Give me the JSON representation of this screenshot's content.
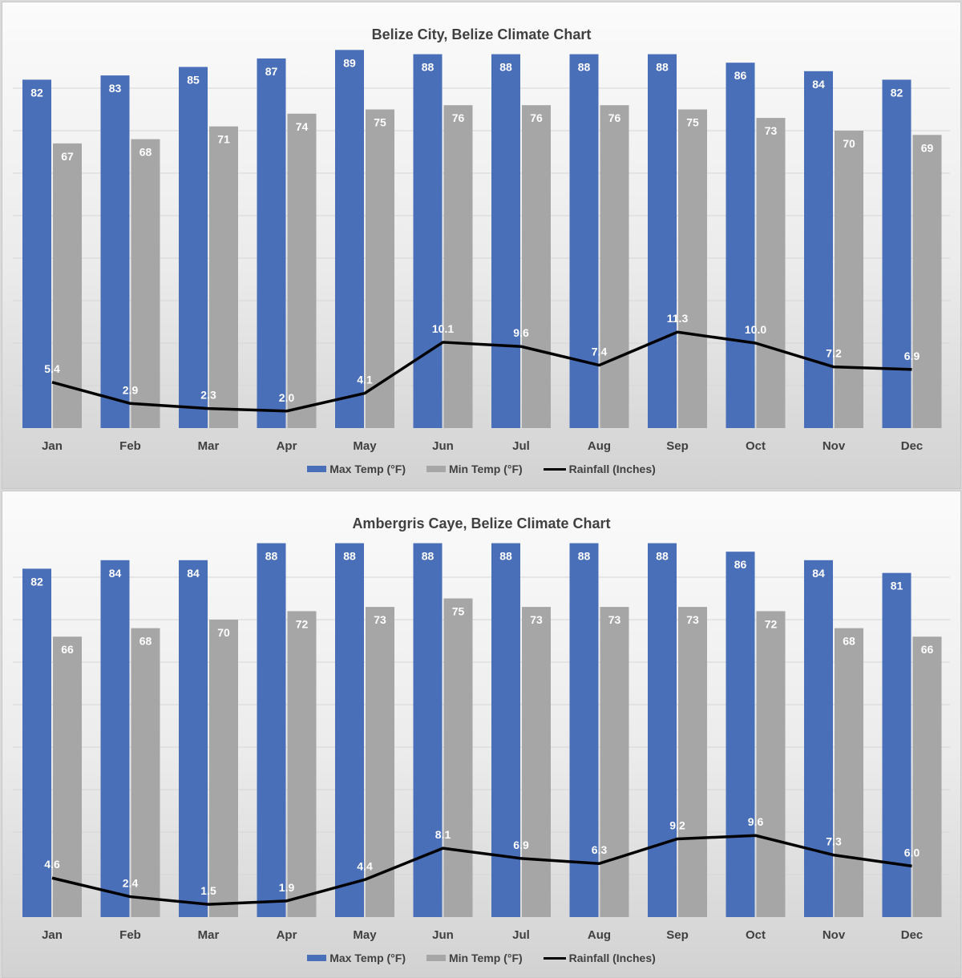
{
  "chart_data": [
    {
      "type": "bar",
      "title": "Belize City, Belize Climate Chart",
      "categories": [
        "Jan",
        "Feb",
        "Mar",
        "Apr",
        "May",
        "Jun",
        "Jul",
        "Aug",
        "Sep",
        "Oct",
        "Nov",
        "Dec"
      ],
      "series": [
        {
          "name": "Max Temp (°F)",
          "type": "bar",
          "color": "#4a6fb9",
          "values": [
            82,
            83,
            85,
            87,
            89,
            88,
            88,
            88,
            88,
            86,
            84,
            82
          ]
        },
        {
          "name": "Min Temp (°F)",
          "type": "bar",
          "color": "#a6a6a6",
          "values": [
            67,
            68,
            71,
            74,
            75,
            76,
            76,
            76,
            75,
            73,
            70,
            69
          ]
        },
        {
          "name": "Rainfall (Inches)",
          "type": "line",
          "color": "#000000",
          "values": [
            5.4,
            2.9,
            2.3,
            2.0,
            4.1,
            10.1,
            9.6,
            7.4,
            11.3,
            10.0,
            7.2,
            6.9
          ]
        }
      ],
      "grid": true,
      "legend": "bottom"
    },
    {
      "type": "bar",
      "title": "Ambergris Caye, Belize Climate Chart",
      "categories": [
        "Jan",
        "Feb",
        "Mar",
        "Apr",
        "May",
        "Jun",
        "Jul",
        "Aug",
        "Sep",
        "Oct",
        "Nov",
        "Dec"
      ],
      "series": [
        {
          "name": "Max Temp (°F)",
          "type": "bar",
          "color": "#4a6fb9",
          "values": [
            82,
            84,
            84,
            88,
            88,
            88,
            88,
            88,
            88,
            86,
            84,
            81
          ]
        },
        {
          "name": "Min Temp (°F)",
          "type": "bar",
          "color": "#a6a6a6",
          "values": [
            66,
            68,
            70,
            72,
            73,
            75,
            73,
            73,
            73,
            72,
            68,
            66
          ]
        },
        {
          "name": "Rainfall (Inches)",
          "type": "line",
          "color": "#000000",
          "values": [
            4.6,
            2.4,
            1.5,
            1.9,
            4.4,
            8.1,
            6.9,
            6.3,
            9.2,
            9.6,
            7.3,
            6.0
          ]
        }
      ],
      "grid": true,
      "legend": "bottom"
    }
  ]
}
